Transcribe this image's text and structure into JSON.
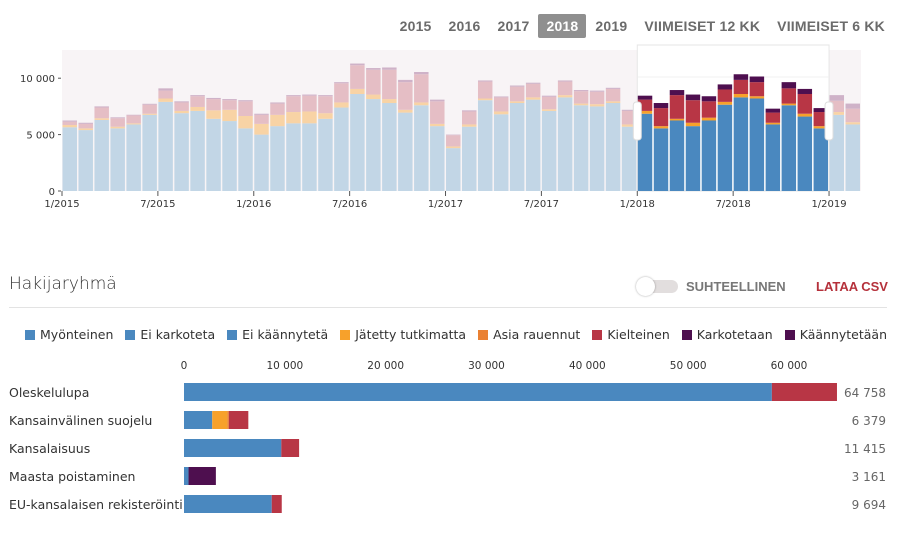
{
  "period_tabs": [
    {
      "label": "2015",
      "active": false
    },
    {
      "label": "2016",
      "active": false
    },
    {
      "label": "2017",
      "active": false
    },
    {
      "label": "2018",
      "active": true
    },
    {
      "label": "2019",
      "active": false
    },
    {
      "label": "VIIMEISET 12 KK",
      "active": false
    },
    {
      "label": "VIIMEISET 6 KK",
      "active": false
    }
  ],
  "section": {
    "title": "Hakijaryhmä",
    "toggle_label": "SUHTEELLINEN",
    "toggle_on": false,
    "csv_label": "LATAA CSV"
  },
  "legend": [
    {
      "label": "Myönteinen",
      "color": "#4a88bf"
    },
    {
      "label": "Ei karkoteta",
      "color": "#4a88bf"
    },
    {
      "label": "Ei käännytetä",
      "color": "#4a88bf"
    },
    {
      "label": "Jätetty tutkimatta",
      "color": "#f7a12b"
    },
    {
      "label": "Asia rauennut",
      "color": "#ea8133"
    },
    {
      "label": "Kielteinen",
      "color": "#b83645"
    },
    {
      "label": "Karkotetaan",
      "color": "#4e0f4f"
    },
    {
      "label": "Käännytetään",
      "color": "#4e0f4f"
    }
  ],
  "chart_data": [
    {
      "type": "bar",
      "stacked": true,
      "title": "Monthly decisions",
      "x_tick_labels": [
        "1/2015",
        "7/2015",
        "1/2016",
        "7/2016",
        "1/2017",
        "7/2017",
        "1/2018",
        "7/2018",
        "1/2019"
      ],
      "y_tick_labels": [
        "0",
        "5 000",
        "10 000"
      ],
      "ylim": [
        0,
        12500
      ],
      "x": [
        "1/2015",
        "2/2015",
        "3/2015",
        "4/2015",
        "5/2015",
        "6/2015",
        "7/2015",
        "8/2015",
        "9/2015",
        "10/2015",
        "11/2015",
        "12/2015",
        "1/2016",
        "2/2016",
        "3/2016",
        "4/2016",
        "5/2016",
        "6/2016",
        "7/2016",
        "8/2016",
        "9/2016",
        "10/2016",
        "11/2016",
        "12/2016",
        "1/2017",
        "2/2017",
        "3/2017",
        "4/2017",
        "5/2017",
        "6/2017",
        "7/2017",
        "8/2017",
        "9/2017",
        "10/2017",
        "11/2017",
        "12/2017",
        "1/2018",
        "2/2018",
        "3/2018",
        "4/2018",
        "5/2018",
        "6/2018",
        "7/2018",
        "8/2018",
        "9/2018",
        "10/2018",
        "11/2018",
        "12/2018",
        "1/2019",
        "2/2019"
      ],
      "selected_range": [
        "1/2018",
        "12/2018"
      ],
      "series": [
        {
          "name": "Myönteinen",
          "values": [
            5650,
            5400,
            6300,
            5550,
            5900,
            6750,
            7900,
            6900,
            7100,
            6400,
            6200,
            5550,
            5000,
            5750,
            6000,
            6000,
            6400,
            7400,
            8600,
            8150,
            7800,
            6950,
            7600,
            5750,
            3800,
            5700,
            8050,
            6800,
            7800,
            8100,
            7100,
            8300,
            7600,
            7500,
            7800,
            5700,
            6850,
            5550,
            6250,
            5750,
            6250,
            7650,
            8300,
            8200,
            5900,
            7600,
            6600,
            5550,
            6750,
            5900
          ]
        },
        {
          "name": "Jätetty tutkimatta",
          "values": [
            200,
            150,
            150,
            150,
            100,
            100,
            300,
            200,
            350,
            750,
            1000,
            1100,
            950,
            1000,
            1000,
            1050,
            500,
            450,
            450,
            400,
            350,
            250,
            250,
            200,
            150,
            200,
            150,
            250,
            150,
            200,
            150,
            200,
            150,
            200,
            150,
            200,
            250,
            200,
            150,
            300,
            250,
            250,
            300,
            200,
            150,
            150,
            250,
            200,
            250,
            200
          ]
        },
        {
          "name": "Kielteinen",
          "values": [
            300,
            400,
            950,
            750,
            700,
            800,
            700,
            750,
            950,
            1000,
            850,
            1300,
            800,
            1000,
            1400,
            1400,
            1500,
            1700,
            2100,
            2200,
            2600,
            2450,
            2500,
            2000,
            1000,
            1150,
            1500,
            1250,
            1300,
            1200,
            1100,
            1200,
            1100,
            1100,
            1100,
            1200,
            1000,
            1600,
            2100,
            2000,
            1450,
            1100,
            1250,
            1250,
            900,
            1350,
            1750,
            1250,
            1000,
            1200
          ]
        },
        {
          "name": "Käännytetään",
          "values": [
            100,
            100,
            100,
            80,
            60,
            80,
            200,
            100,
            100,
            100,
            100,
            100,
            100,
            100,
            100,
            100,
            100,
            100,
            150,
            150,
            200,
            200,
            200,
            150,
            50,
            100,
            100,
            80,
            100,
            100,
            100,
            100,
            100,
            100,
            100,
            100,
            350,
            450,
            450,
            500,
            450,
            450,
            500,
            500,
            350,
            550,
            450,
            350,
            500,
            450
          ]
        }
      ]
    },
    {
      "type": "bar",
      "orientation": "horizontal",
      "stacked": true,
      "title": "Hakijaryhmä",
      "xlim": [
        0,
        65000
      ],
      "x_tick_labels": [
        "0",
        "10 000",
        "20 000",
        "30 000",
        "40 000",
        "50 000",
        "60 000"
      ],
      "categories": [
        "Oleskelulupa",
        "Kansainvälinen suojelu",
        "Kansalaisuus",
        "Maasta poistaminen",
        "EU-kansalaisen rekisteröinti"
      ],
      "totals": [
        "64 758",
        "6 379",
        "11 415",
        "3 161",
        "9 694"
      ],
      "series": [
        {
          "name": "Myönteinen",
          "color": "#4a88bf",
          "values": [
            58300,
            2800,
            9650,
            0,
            8700
          ]
        },
        {
          "name": "Ei karkoteta",
          "color": "#4a88bf",
          "values": [
            0,
            0,
            0,
            0,
            0
          ]
        },
        {
          "name": "Ei käännytetä",
          "color": "#4a88bf",
          "values": [
            0,
            0,
            0,
            450,
            0
          ]
        },
        {
          "name": "Jätetty tutkimatta",
          "color": "#f7a12b",
          "values": [
            0,
            1500,
            0,
            0,
            0
          ]
        },
        {
          "name": "Asia rauennut",
          "color": "#ea8133",
          "values": [
            0,
            150,
            0,
            0,
            0
          ]
        },
        {
          "name": "Kielteinen",
          "color": "#b83645",
          "values": [
            6458,
            1929,
            1765,
            0,
            994
          ]
        },
        {
          "name": "Karkotetaan",
          "color": "#4e0f4f",
          "values": [
            0,
            0,
            0,
            0,
            0
          ]
        },
        {
          "name": "Käännytetään",
          "color": "#4e0f4f",
          "values": [
            0,
            0,
            0,
            2711,
            0
          ]
        }
      ]
    }
  ]
}
